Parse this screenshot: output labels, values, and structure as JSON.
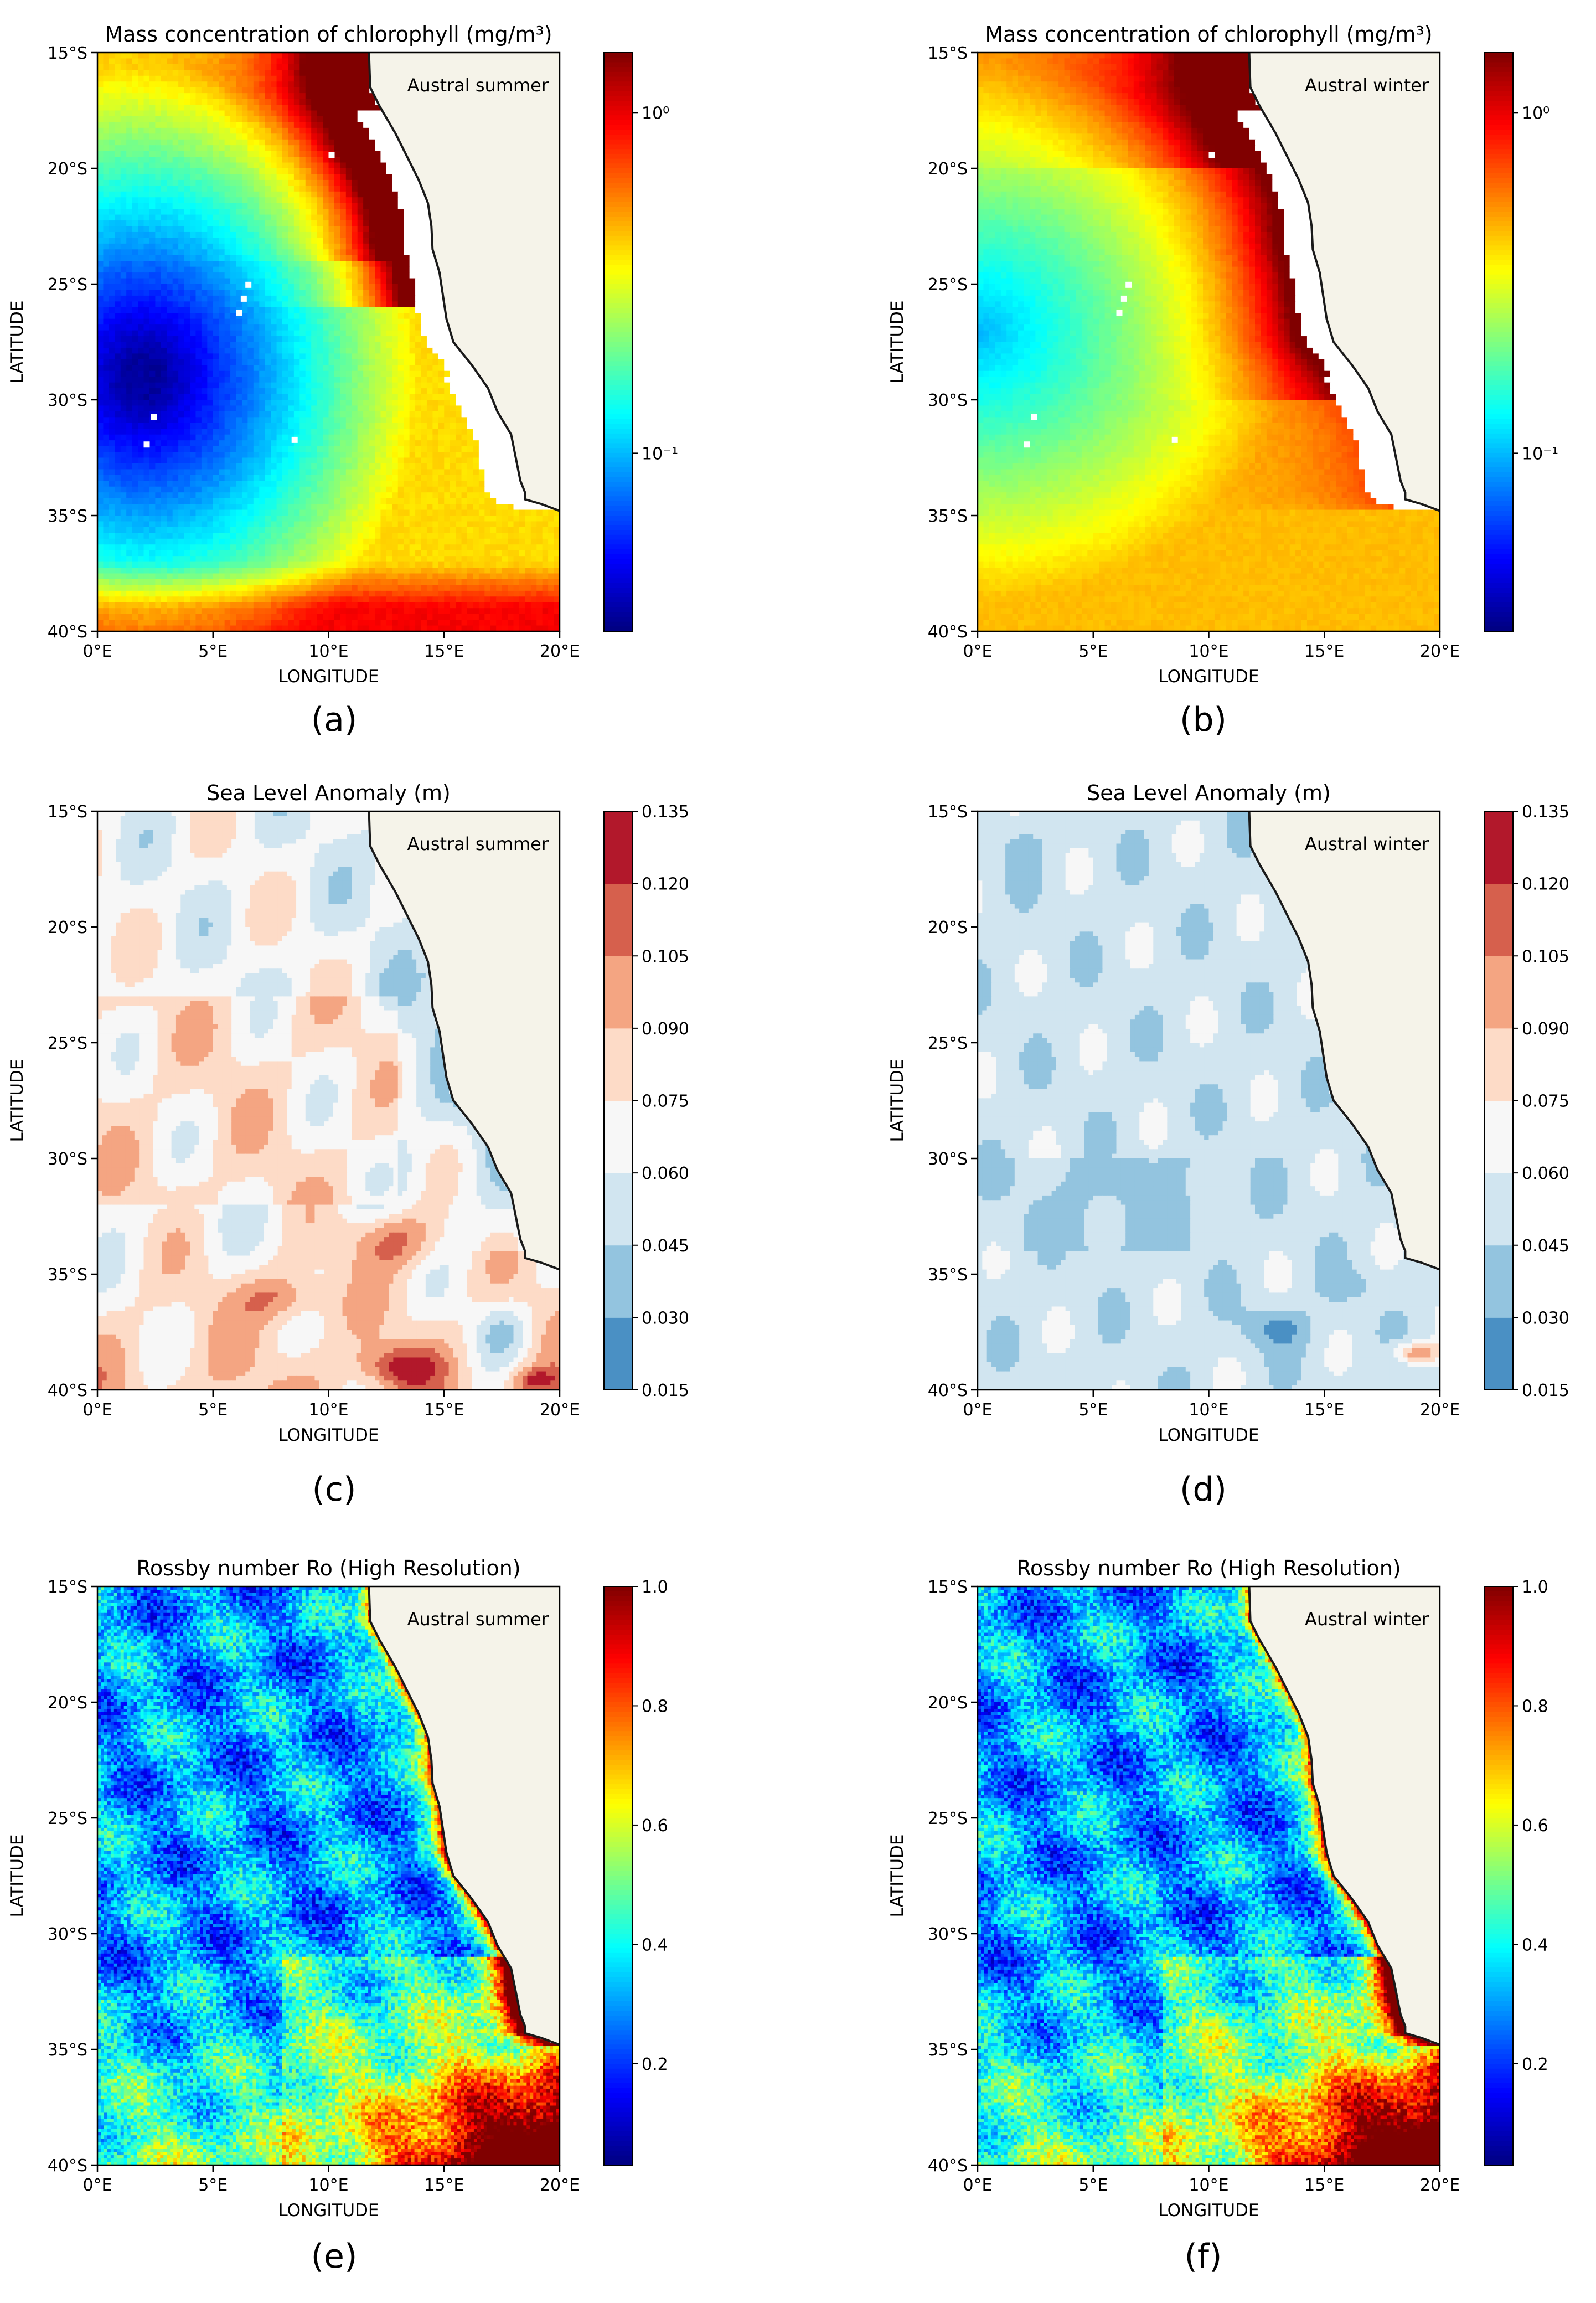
{
  "chart_data": [
    {
      "type": "heatmap",
      "panel_label": "(a)",
      "title": "Mass concentration of chlorophyll (mg/m³)",
      "season": "Austral summer",
      "xlabel": "LONGITUDE",
      "ylabel": "LATITUDE",
      "x_ticks": [
        "0°E",
        "5°E",
        "10°E",
        "15°E",
        "20°E"
      ],
      "y_ticks": [
        "15°S",
        "20°S",
        "25°S",
        "30°S",
        "35°S",
        "40°S"
      ],
      "xlim": [
        0,
        20
      ],
      "ylim": [
        -40,
        -15
      ],
      "colormap": "jet",
      "colorbar_scale": "log",
      "colorbar_ticks": [
        "10⁰",
        "10⁻¹"
      ],
      "colorbar_tick_values": [
        1.0,
        0.1
      ],
      "colorbar_range": [
        0.03,
        1.5
      ],
      "grid": false,
      "field_description": "low (blue) offshore gyre centered near 2E 30S, high (red) along the coast north of 25S"
    },
    {
      "type": "heatmap",
      "panel_label": "(b)",
      "title": "Mass concentration of chlorophyll (mg/m³)",
      "season": "Austral winter",
      "xlabel": "LONGITUDE",
      "ylabel": "LATITUDE",
      "x_ticks": [
        "0°E",
        "5°E",
        "10°E",
        "15°E",
        "20°E"
      ],
      "y_ticks": [
        "15°S",
        "20°S",
        "25°S",
        "30°S",
        "35°S",
        "40°S"
      ],
      "xlim": [
        0,
        20
      ],
      "ylim": [
        -40,
        -15
      ],
      "colormap": "jet",
      "colorbar_scale": "log",
      "colorbar_ticks": [
        "10⁰",
        "10⁻¹"
      ],
      "colorbar_tick_values": [
        1.0,
        0.1
      ],
      "colorbar_range": [
        0.03,
        1.5
      ],
      "grid": false
    },
    {
      "type": "heatmap",
      "panel_label": "(c)",
      "title": "Sea Level Anomaly (m)",
      "season": "Austral summer",
      "xlabel": "LONGITUDE",
      "ylabel": "LATITUDE",
      "x_ticks": [
        "0°E",
        "5°E",
        "10°E",
        "15°E",
        "20°E"
      ],
      "y_ticks": [
        "15°S",
        "20°S",
        "25°S",
        "30°S",
        "35°S",
        "40°S"
      ],
      "xlim": [
        0,
        20
      ],
      "ylim": [
        -40,
        -15
      ],
      "colormap": "RdBu_r (filled contours)",
      "colorbar_ticks": [
        "0.135",
        "0.120",
        "0.105",
        "0.090",
        "0.075",
        "0.060",
        "0.045",
        "0.030",
        "0.015"
      ],
      "colorbar_range": [
        0.015,
        0.135
      ],
      "colorbar_colors": [
        "#4a90c4",
        "#93c4df",
        "#d1e5f0",
        "#f7f7f7",
        "#fddbc7",
        "#f4a582",
        "#d6604d",
        "#b2182b"
      ],
      "grid": false
    },
    {
      "type": "heatmap",
      "panel_label": "(d)",
      "title": "Sea Level Anomaly (m)",
      "season": "Austral winter",
      "xlabel": "LONGITUDE",
      "ylabel": "LATITUDE",
      "x_ticks": [
        "0°E",
        "5°E",
        "10°E",
        "15°E",
        "20°E"
      ],
      "y_ticks": [
        "15°S",
        "20°S",
        "25°S",
        "30°S",
        "35°S",
        "40°S"
      ],
      "xlim": [
        0,
        20
      ],
      "ylim": [
        -40,
        -15
      ],
      "colormap": "RdBu_r (filled contours)",
      "colorbar_ticks": [
        "0.135",
        "0.120",
        "0.105",
        "0.090",
        "0.075",
        "0.060",
        "0.045",
        "0.030",
        "0.015"
      ],
      "colorbar_range": [
        0.015,
        0.135
      ],
      "colorbar_colors": [
        "#4a90c4",
        "#93c4df",
        "#d1e5f0",
        "#f7f7f7",
        "#fddbc7",
        "#f4a582",
        "#d6604d",
        "#b2182b"
      ],
      "grid": false
    },
    {
      "type": "heatmap",
      "panel_label": "(e)",
      "title": "Rossby number Ro (High Resolution)",
      "season": "Austral summer",
      "xlabel": "LONGITUDE",
      "ylabel": "LATITUDE",
      "x_ticks": [
        "0°E",
        "5°E",
        "10°E",
        "15°E",
        "20°E"
      ],
      "y_ticks": [
        "15°S",
        "20°S",
        "25°S",
        "30°S",
        "35°S",
        "40°S"
      ],
      "xlim": [
        0,
        20
      ],
      "ylim": [
        -40,
        -15
      ],
      "colormap": "jet",
      "colorbar_ticks": [
        "1.0",
        "0.8",
        "0.6",
        "0.4",
        "0.2"
      ],
      "colorbar_range": [
        0.03,
        1.0
      ],
      "grid": false
    },
    {
      "type": "heatmap",
      "panel_label": "(f)",
      "title": "Rossby number Ro (High Resolution)",
      "season": "Austral winter",
      "xlabel": "LONGITUDE",
      "ylabel": "LATITUDE",
      "x_ticks": [
        "0°E",
        "5°E",
        "10°E",
        "15°E",
        "20°E"
      ],
      "y_ticks": [
        "15°S",
        "20°S",
        "25°S",
        "30°S",
        "35°S",
        "40°S"
      ],
      "xlim": [
        0,
        20
      ],
      "ylim": [
        -40,
        -15
      ],
      "colormap": "jet",
      "colorbar_ticks": [
        "1.0",
        "0.8",
        "0.6",
        "0.4",
        "0.2"
      ],
      "colorbar_range": [
        0.03,
        1.0
      ],
      "grid": false
    }
  ],
  "colors": {
    "land": "#f5f3e9",
    "coastline": "#1a1a1a",
    "axis": "#000000"
  }
}
